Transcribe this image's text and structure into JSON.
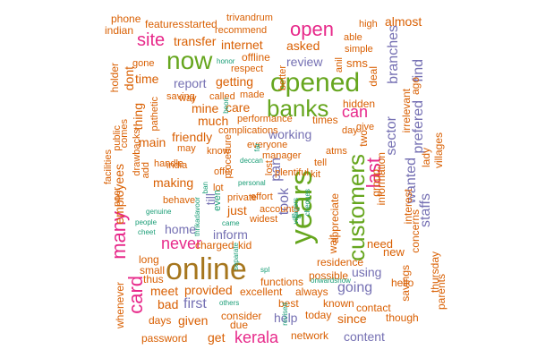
{
  "palette": {
    "orange": "#d95f02",
    "purple": "#7570b3",
    "pink": "#e7298a",
    "green": "#66a61e",
    "teal": "#1b9e77",
    "gold": "#a6761d"
  },
  "words": [
    {
      "text": "online",
      "color": "gold"
    },
    {
      "text": "years",
      "color": "green"
    },
    {
      "text": "opened",
      "color": "green"
    },
    {
      "text": "now",
      "color": "green"
    },
    {
      "text": "customers",
      "color": "green"
    },
    {
      "text": "banks",
      "color": "green"
    },
    {
      "text": "many",
      "color": "pink"
    },
    {
      "text": "open",
      "color": "pink"
    },
    {
      "text": "site",
      "color": "pink"
    },
    {
      "text": "card",
      "color": "pink"
    },
    {
      "text": "last",
      "color": "pink"
    },
    {
      "text": "can",
      "color": "pink"
    },
    {
      "text": "never",
      "color": "pink"
    },
    {
      "text": "kerala",
      "color": "pink"
    },
    {
      "text": "branches",
      "color": "purple"
    },
    {
      "text": "took",
      "color": "purple"
    },
    {
      "text": "find",
      "color": "purple"
    },
    {
      "text": "prefered",
      "color": "purple"
    },
    {
      "text": "pan",
      "color": "purple"
    },
    {
      "text": "going",
      "color": "purple"
    },
    {
      "text": "wanted",
      "color": "purple"
    },
    {
      "text": "staffs",
      "color": "purple"
    },
    {
      "text": "content",
      "color": "purple"
    },
    {
      "text": "sector",
      "color": "purple"
    },
    {
      "text": "working",
      "color": "purple"
    },
    {
      "text": "review",
      "color": "purple"
    },
    {
      "text": "report",
      "color": "purple"
    },
    {
      "text": "first",
      "color": "purple"
    },
    {
      "text": "inform",
      "color": "purple"
    },
    {
      "text": "using",
      "color": "purple"
    },
    {
      "text": "home",
      "color": "purple"
    },
    {
      "text": "till",
      "color": "purple"
    },
    {
      "text": "help",
      "color": "purple"
    },
    {
      "text": "employees",
      "color": "orange"
    },
    {
      "text": "provided",
      "color": "orange"
    },
    {
      "text": "transfer",
      "color": "orange"
    },
    {
      "text": "almost",
      "color": "orange"
    },
    {
      "text": "since",
      "color": "orange"
    },
    {
      "text": "need",
      "color": "orange"
    },
    {
      "text": "get",
      "color": "orange"
    },
    {
      "text": "mine",
      "color": "orange"
    },
    {
      "text": "main",
      "color": "orange"
    },
    {
      "text": "friendly",
      "color": "orange"
    },
    {
      "text": "much",
      "color": "orange"
    },
    {
      "text": "making",
      "color": "orange"
    },
    {
      "text": "time",
      "color": "orange"
    },
    {
      "text": "meet",
      "color": "orange"
    },
    {
      "text": "given",
      "color": "orange"
    },
    {
      "text": "bad",
      "color": "orange"
    },
    {
      "text": "just",
      "color": "orange"
    },
    {
      "text": "sms",
      "color": "orange"
    },
    {
      "text": "asked",
      "color": "orange"
    },
    {
      "text": "internet",
      "color": "orange"
    },
    {
      "text": "getting",
      "color": "orange"
    },
    {
      "text": "care",
      "color": "orange"
    },
    {
      "text": "thing",
      "color": "orange"
    },
    {
      "text": "dont",
      "color": "orange"
    },
    {
      "text": "whenever",
      "color": "orange"
    },
    {
      "text": "holder",
      "color": "orange"
    },
    {
      "text": "charged",
      "color": "orange"
    },
    {
      "text": "new",
      "color": "orange"
    },
    {
      "text": "residence",
      "color": "orange"
    },
    {
      "text": "possible",
      "color": "orange"
    },
    {
      "text": "excellent",
      "color": "orange"
    },
    {
      "text": "consider",
      "color": "orange"
    },
    {
      "text": "network",
      "color": "orange"
    },
    {
      "text": "password",
      "color": "orange"
    },
    {
      "text": "days",
      "color": "orange"
    },
    {
      "text": "thus",
      "color": "orange"
    },
    {
      "text": "small",
      "color": "orange"
    },
    {
      "text": "long",
      "color": "orange"
    },
    {
      "text": "kid",
      "color": "orange"
    },
    {
      "text": "due",
      "color": "orange"
    },
    {
      "text": "best",
      "color": "orange"
    },
    {
      "text": "always",
      "color": "orange"
    },
    {
      "text": "today",
      "color": "orange"
    },
    {
      "text": "known",
      "color": "orange"
    },
    {
      "text": "contact",
      "color": "orange"
    },
    {
      "text": "though",
      "color": "orange"
    },
    {
      "text": "functions",
      "color": "orange"
    },
    {
      "text": "wait",
      "color": "orange"
    },
    {
      "text": "hello",
      "color": "orange"
    },
    {
      "text": "thursday",
      "color": "orange"
    },
    {
      "text": "savings",
      "color": "orange"
    },
    {
      "text": "parents",
      "color": "orange"
    },
    {
      "text": "interest",
      "color": "orange"
    },
    {
      "text": "concerns",
      "color": "orange"
    },
    {
      "text": "lady",
      "color": "orange"
    },
    {
      "text": "villages",
      "color": "orange"
    },
    {
      "text": "irrelevant",
      "color": "orange"
    },
    {
      "text": "ago",
      "color": "orange"
    },
    {
      "text": "information",
      "color": "orange"
    },
    {
      "text": "group",
      "color": "orange"
    },
    {
      "text": "two",
      "color": "orange"
    },
    {
      "text": "appreciate",
      "color": "orange"
    },
    {
      "text": "kit",
      "color": "orange"
    },
    {
      "text": "tell",
      "color": "orange"
    },
    {
      "text": "atms",
      "color": "orange"
    },
    {
      "text": "day",
      "color": "orange"
    },
    {
      "text": "give",
      "color": "orange"
    },
    {
      "text": "times",
      "color": "orange"
    },
    {
      "text": "hidden",
      "color": "orange"
    },
    {
      "text": "deal",
      "color": "orange"
    },
    {
      "text": "simple",
      "color": "orange"
    },
    {
      "text": "able",
      "color": "orange"
    },
    {
      "text": "high",
      "color": "orange"
    },
    {
      "text": "anil",
      "color": "orange"
    },
    {
      "text": "better",
      "color": "orange"
    },
    {
      "text": "recommend",
      "color": "orange"
    },
    {
      "text": "trivandrum",
      "color": "orange"
    },
    {
      "text": "started",
      "color": "orange"
    },
    {
      "text": "features",
      "color": "orange"
    },
    {
      "text": "phone",
      "color": "orange"
    },
    {
      "text": "indian",
      "color": "orange"
    },
    {
      "text": "gone",
      "color": "orange"
    },
    {
      "text": "offline",
      "color": "orange"
    },
    {
      "text": "respect",
      "color": "orange"
    },
    {
      "text": "saving",
      "color": "orange"
    },
    {
      "text": "way",
      "color": "orange"
    },
    {
      "text": "called",
      "color": "orange"
    },
    {
      "text": "made",
      "color": "orange"
    },
    {
      "text": "pathetic",
      "color": "orange"
    },
    {
      "text": "comes",
      "color": "orange"
    },
    {
      "text": "public",
      "color": "orange"
    },
    {
      "text": "drawbacks",
      "color": "orange"
    },
    {
      "text": "facilities",
      "color": "orange"
    },
    {
      "text": "poor",
      "color": "orange"
    },
    {
      "text": "add",
      "color": "orange"
    },
    {
      "text": "handle",
      "color": "orange"
    },
    {
      "text": "india",
      "color": "orange"
    },
    {
      "text": "may",
      "color": "orange"
    },
    {
      "text": "know",
      "color": "orange"
    },
    {
      "text": "procedure",
      "color": "orange"
    },
    {
      "text": "complications",
      "color": "orange"
    },
    {
      "text": "performance",
      "color": "orange"
    },
    {
      "text": "everyone",
      "color": "orange"
    },
    {
      "text": "manager",
      "color": "orange"
    },
    {
      "text": "plentiful",
      "color": "orange"
    },
    {
      "text": "offer",
      "color": "orange"
    },
    {
      "text": "lot",
      "color": "orange"
    },
    {
      "text": "private",
      "color": "orange"
    },
    {
      "text": "effort",
      "color": "orange"
    },
    {
      "text": "lost",
      "color": "orange"
    },
    {
      "text": "accounts",
      "color": "orange"
    },
    {
      "text": "behave",
      "color": "orange"
    },
    {
      "text": "widest",
      "color": "orange"
    },
    {
      "text": "even",
      "color": "teal"
    },
    {
      "text": "honor",
      "color": "teal"
    },
    {
      "text": "beon",
      "color": "teal"
    },
    {
      "text": "deccan",
      "color": "teal"
    },
    {
      "text": "far",
      "color": "teal"
    },
    {
      "text": "personal",
      "color": "teal"
    },
    {
      "text": "ban",
      "color": "teal"
    },
    {
      "text": "thrikadavoor",
      "color": "teal"
    },
    {
      "text": "genuine",
      "color": "teal"
    },
    {
      "text": "people",
      "color": "teal"
    },
    {
      "text": "cheet",
      "color": "teal"
    },
    {
      "text": "came",
      "color": "teal"
    },
    {
      "text": "villagers",
      "color": "teal"
    },
    {
      "text": "tds",
      "color": "teal"
    },
    {
      "text": "cheques",
      "color": "teal"
    },
    {
      "text": "separate",
      "color": "teal"
    },
    {
      "text": "spl",
      "color": "teal"
    },
    {
      "text": "onwardsnow",
      "color": "teal"
    },
    {
      "text": "others",
      "color": "teal"
    },
    {
      "text": "revised",
      "color": "teal"
    }
  ]
}
